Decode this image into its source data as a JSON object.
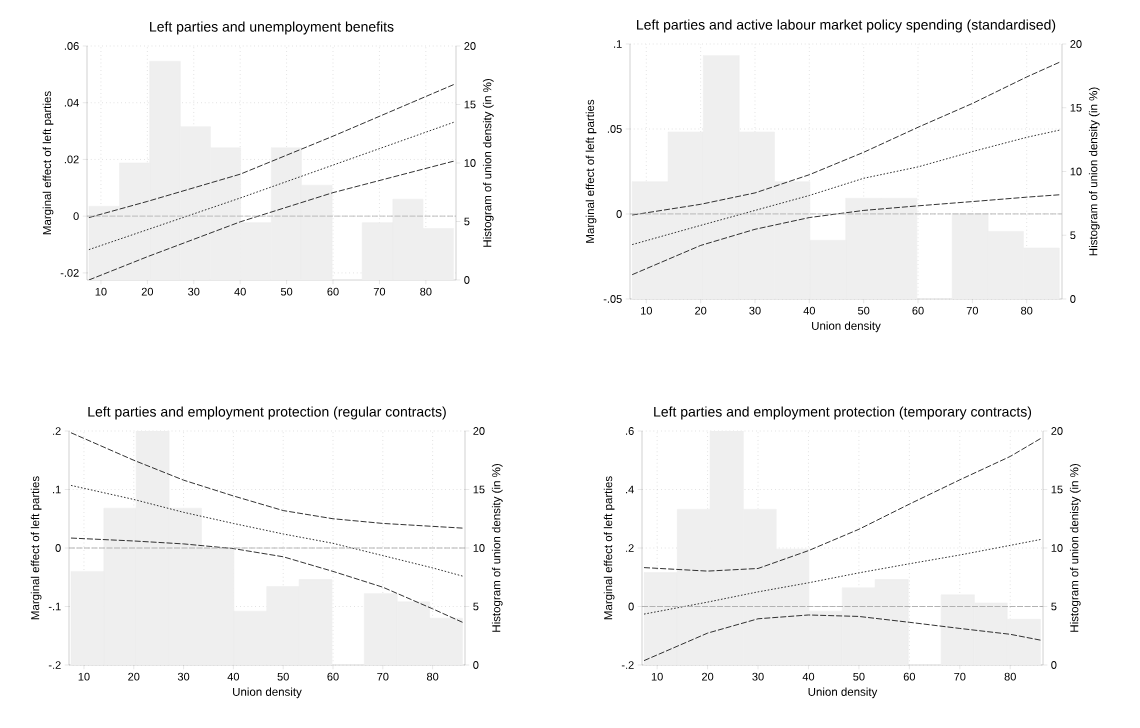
{
  "chart_data": [
    {
      "type": "histogram",
      "title": "Left parties and unemployment benefits",
      "ylabel": "Marginal effect of left parties",
      "y2label": "Histogram of union density (in %)",
      "xlim": [
        7,
        86.5
      ],
      "xticks": [
        10,
        20,
        30,
        40,
        50,
        60,
        70,
        80
      ],
      "ylim": [
        -0.0225,
        0.06
      ],
      "yticks": [
        {
          "value": -0.02,
          "label": "-.02"
        },
        0,
        {
          "value": 0.02,
          "label": ".02"
        },
        {
          "value": 0.04,
          "label": ".04"
        },
        {
          "value": 0.06,
          "label": ".06"
        }
      ],
      "y2lim": [
        0,
        20
      ],
      "y2ticks": [
        0,
        5,
        10,
        15,
        20
      ],
      "grid": true,
      "ref_lines": [
        {
          "axis": "y",
          "value": 0,
          "color": "#aaaaaa",
          "line_style": "dashed"
        }
      ],
      "series": [
        {
          "type": "histogram",
          "axis": "y2",
          "color": "#efefef",
          "bins": [
            7.4,
            14.0,
            20.5,
            27.1,
            33.6,
            40.1,
            46.7,
            53.2,
            59.8,
            66.3,
            72.9,
            79.4,
            86.0
          ],
          "values": [
            6.3,
            10.0,
            18.7,
            13.1,
            11.3,
            4.9,
            11.3,
            8.1,
            0,
            4.9,
            6.9,
            4.4
          ]
        },
        {
          "type": "line",
          "color": "#000000",
          "line_style": "dashed",
          "x": [
            7.4,
            20,
            40,
            60,
            86
          ],
          "values": [
            -0.0005,
            0.0052,
            0.0148,
            0.0282,
            0.0464
          ]
        },
        {
          "type": "line",
          "color": "#000000",
          "line_style": "dotted",
          "x": [
            7.4,
            40,
            86
          ],
          "values": [
            -0.0118,
            0.0064,
            0.0331
          ]
        },
        {
          "type": "line",
          "color": "#000000",
          "line_style": "dashed",
          "x": [
            7.4,
            20,
            40,
            60,
            86
          ],
          "values": [
            -0.0225,
            -0.0143,
            -0.002,
            0.0083,
            0.0194
          ]
        }
      ]
    },
    {
      "type": "histogram",
      "title": "Left parties and active labour market policy spending (standardised)",
      "xlabel": "Union density",
      "ylabel": "Marginal effect of left parties",
      "y2label": "Histogram of union density (in %)",
      "xlim": [
        7,
        86.5
      ],
      "xticks": [
        10,
        20,
        30,
        40,
        50,
        60,
        70,
        80
      ],
      "ylim": [
        -0.05,
        0.1
      ],
      "yticks": [
        {
          "value": -0.05,
          "label": "-.05"
        },
        0,
        {
          "value": 0.05,
          "label": ".05"
        },
        {
          "value": 0.1,
          "label": ".1"
        }
      ],
      "y2lim": [
        0,
        20
      ],
      "y2ticks": [
        0,
        5,
        10,
        15,
        20
      ],
      "grid": true,
      "ref_lines": [
        {
          "axis": "y",
          "value": 0,
          "color": "#aaaaaa",
          "line_style": "dashed"
        }
      ],
      "series": [
        {
          "type": "histogram",
          "axis": "y2",
          "color": "#efefef",
          "bins": [
            7.4,
            14.0,
            20.5,
            27.1,
            33.6,
            40.1,
            46.7,
            53.2,
            59.8,
            66.3,
            72.9,
            79.4,
            86.0
          ],
          "values": [
            9.2,
            13.1,
            19.1,
            13.1,
            9.2,
            4.6,
            7.9,
            7.9,
            0,
            6.7,
            5.3,
            4.0
          ]
        },
        {
          "type": "line",
          "color": "#000000",
          "line_style": "dashed",
          "x": [
            7.4,
            20,
            30,
            40,
            50,
            60,
            70,
            80,
            86
          ],
          "values": [
            -0.0006,
            0.0057,
            0.0124,
            0.0231,
            0.0363,
            0.051,
            0.065,
            0.0806,
            0.0892
          ]
        },
        {
          "type": "line",
          "color": "#000000",
          "line_style": "dotted",
          "x": [
            7.4,
            20,
            30,
            40,
            50,
            60,
            70,
            80,
            86
          ],
          "values": [
            -0.018,
            -0.0067,
            0.0021,
            0.0109,
            0.021,
            0.0277,
            0.0367,
            0.0451,
            0.0493
          ]
        },
        {
          "type": "line",
          "color": "#000000",
          "line_style": "dashed",
          "x": [
            7.4,
            20,
            30,
            40,
            50,
            60,
            70,
            80,
            86
          ],
          "values": [
            -0.0357,
            -0.0185,
            -0.009,
            -0.0021,
            0.0021,
            0.0048,
            0.0073,
            0.0099,
            0.0113
          ]
        }
      ]
    },
    {
      "type": "histogram",
      "title": "Left parties and employment protection (regular contracts)",
      "xlabel": "Union density",
      "ylabel": "Marginal effect of left parties",
      "y2label": "Histogram of union density (in %)",
      "xlim": [
        7,
        86.5
      ],
      "xticks": [
        10,
        20,
        30,
        40,
        50,
        60,
        70,
        80
      ],
      "ylim": [
        -0.2,
        0.2
      ],
      "yticks": [
        {
          "value": -0.2,
          "label": "-.2"
        },
        {
          "value": -0.1,
          "label": "-.1"
        },
        0,
        {
          "value": 0.1,
          "label": ".1"
        },
        {
          "value": 0.2,
          "label": ".2"
        }
      ],
      "y2lim": [
        0,
        20
      ],
      "y2ticks": [
        0,
        5,
        10,
        15,
        20
      ],
      "grid": true,
      "ref_lines": [
        {
          "axis": "y",
          "value": 0,
          "color": "#aaaaaa",
          "line_style": "dashed"
        }
      ],
      "series": [
        {
          "type": "histogram",
          "axis": "y2",
          "color": "#efefef",
          "bins": [
            7.4,
            14.0,
            20.5,
            27.1,
            33.6,
            40.1,
            46.7,
            53.2,
            59.8,
            66.3,
            72.9,
            79.4,
            86.0
          ],
          "values": [
            8.0,
            13.4,
            20.0,
            13.4,
            10.0,
            4.6,
            6.7,
            7.3,
            0,
            6.1,
            5.4,
            4.0
          ]
        },
        {
          "type": "line",
          "color": "#000000",
          "line_style": "dashed",
          "x": [
            7.4,
            20,
            30,
            40,
            50,
            60,
            70,
            80,
            86
          ],
          "values": [
            0.197,
            0.15,
            0.116,
            0.089,
            0.064,
            0.05,
            0.042,
            0.037,
            0.034
          ]
        },
        {
          "type": "line",
          "color": "#000000",
          "line_style": "dotted",
          "x": [
            7.4,
            20,
            30,
            40,
            50,
            60,
            70,
            80,
            86
          ],
          "values": [
            0.107,
            0.083,
            0.061,
            0.042,
            0.024,
            0.008,
            -0.013,
            -0.034,
            -0.048
          ]
        },
        {
          "type": "line",
          "color": "#000000",
          "line_style": "dashed",
          "x": [
            7.4,
            20,
            30,
            40,
            50,
            60,
            70,
            80,
            86
          ],
          "values": [
            0.017,
            0.012,
            0.007,
            -0.001,
            -0.015,
            -0.04,
            -0.067,
            -0.104,
            -0.127
          ]
        }
      ]
    },
    {
      "type": "histogram",
      "title": "Left parties and employment protection (temporary contracts)",
      "xlabel": "Union density",
      "ylabel": "Marginal effect of left parties",
      "y2label": "Histogram of union denisty (in %)",
      "xlim": [
        7,
        86.5
      ],
      "xticks": [
        10,
        20,
        30,
        40,
        50,
        60,
        70,
        80
      ],
      "ylim": [
        -0.2,
        0.6
      ],
      "yticks": [
        {
          "value": -0.2,
          "label": "-.2"
        },
        0,
        {
          "value": 0.2,
          "label": ".2"
        },
        {
          "value": 0.4,
          "label": ".4"
        },
        {
          "value": 0.6,
          "label": ".6"
        }
      ],
      "y2lim": [
        0,
        20
      ],
      "y2ticks": [
        0,
        5,
        10,
        15,
        20
      ],
      "grid": true,
      "ref_lines": [
        {
          "axis": "y",
          "value": 0,
          "color": "#aaaaaa",
          "line_style": "dashed"
        }
      ],
      "series": [
        {
          "type": "histogram",
          "axis": "y2",
          "color": "#efefef",
          "bins": [
            7.4,
            14.0,
            20.5,
            27.1,
            33.6,
            40.1,
            46.7,
            53.2,
            59.8,
            66.3,
            72.9,
            79.4,
            86.0
          ],
          "values": [
            7.9,
            13.3,
            20.0,
            13.3,
            9.9,
            4.6,
            6.6,
            7.3,
            0,
            6.0,
            5.3,
            3.9
          ]
        },
        {
          "type": "line",
          "color": "#000000",
          "line_style": "dashed",
          "x": [
            7.4,
            20,
            30,
            40,
            50,
            60,
            70,
            80,
            86
          ],
          "values": [
            0.133,
            0.121,
            0.13,
            0.191,
            0.264,
            0.35,
            0.433,
            0.513,
            0.574
          ]
        },
        {
          "type": "line",
          "color": "#000000",
          "line_style": "dotted",
          "x": [
            7.4,
            20,
            30,
            40,
            50,
            60,
            70,
            80,
            86
          ],
          "values": [
            -0.026,
            0.015,
            0.05,
            0.081,
            0.115,
            0.146,
            0.176,
            0.209,
            0.229
          ]
        },
        {
          "type": "line",
          "color": "#000000",
          "line_style": "dashed",
          "x": [
            7.4,
            20,
            30,
            40,
            50,
            60,
            70,
            80,
            86
          ],
          "values": [
            -0.185,
            -0.091,
            -0.042,
            -0.029,
            -0.034,
            -0.054,
            -0.075,
            -0.095,
            -0.115
          ]
        }
      ]
    }
  ]
}
